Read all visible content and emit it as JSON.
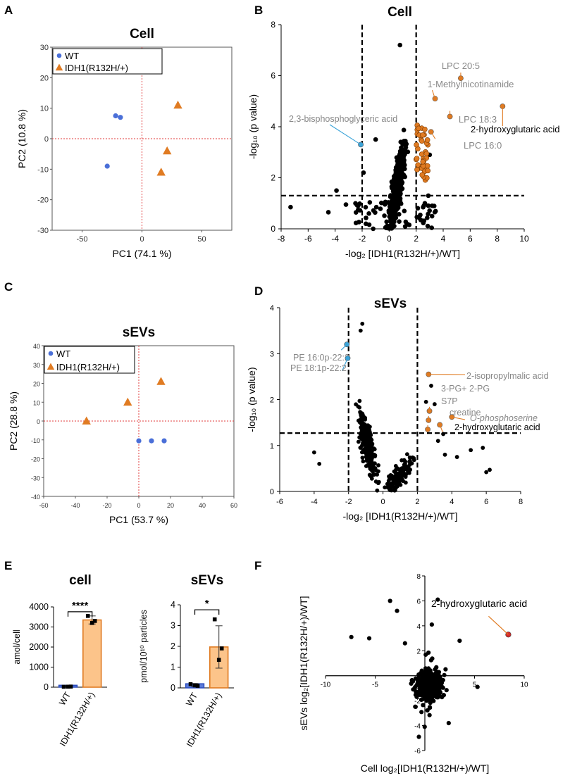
{
  "panels": {
    "A": {
      "letter": "A"
    },
    "B": {
      "letter": "B"
    },
    "C": {
      "letter": "C"
    },
    "D": {
      "letter": "D"
    },
    "E": {
      "letter": "E"
    },
    "F": {
      "letter": "F"
    }
  },
  "colors": {
    "wt": "#4a6fd8",
    "idh": "#e07b22",
    "orangeLabel": "#e07b22",
    "blueLabel": "#3aa3d8",
    "gray": "#888888",
    "red": "#d62a2a",
    "barFill": "#fcc48a"
  },
  "chart_data": [
    {
      "id": "A",
      "type": "scatter",
      "title": "Cell",
      "xlabel": "PC1 (74.1 %)",
      "ylabel": "PC2 (10.8 %)",
      "xlim": [
        -75,
        75
      ],
      "ylim": [
        -30,
        30
      ],
      "xticks": [
        -50,
        0,
        50
      ],
      "yticks": [
        -30,
        -20,
        -10,
        0,
        10,
        20,
        30
      ],
      "xtick_labels": [
        "-50",
        "0",
        "50"
      ],
      "ytick_labels": [
        "-30",
        "-20",
        "-10",
        "0",
        "10",
        "20",
        "30"
      ],
      "legend": [
        "WT",
        "IDH1(R132H/+)"
      ],
      "series": [
        {
          "name": "WT",
          "marker": "circle",
          "points": [
            [
              -22,
              7.5
            ],
            [
              -18,
              7
            ],
            [
              -29,
              -9
            ]
          ]
        },
        {
          "name": "IDH1(R132H/+)",
          "marker": "triangle",
          "points": [
            [
              30,
              11
            ],
            [
              21,
              -4
            ],
            [
              16,
              -11
            ]
          ]
        }
      ]
    },
    {
      "id": "B",
      "type": "scatter",
      "title": "Cell",
      "xlabel": "-log₂ [IDH1(R132H/+)/WT]",
      "ylabel": "-log₁₀ (p value)",
      "xlim": [
        -8,
        10
      ],
      "ylim": [
        0,
        8
      ],
      "xticks": [
        -8,
        -6,
        -4,
        -2,
        0,
        2,
        4,
        6,
        8,
        10
      ],
      "yticks": [
        0,
        2,
        4,
        6,
        8
      ],
      "xtick_labels": [
        "-8",
        "-6",
        "-4",
        "-2",
        "0",
        "2",
        "4",
        "6",
        "8",
        "10"
      ],
      "ytick_labels": [
        "0",
        "2",
        "4",
        "6",
        "8"
      ],
      "vlines": [
        -2,
        2
      ],
      "hline": 1.3,
      "highlighted": [
        {
          "label": "LPC 20:5",
          "x": 5.3,
          "y": 5.9,
          "color": "orange"
        },
        {
          "label": "1-Methylnicotinamide",
          "x": 3.4,
          "y": 5.1,
          "color": "orange"
        },
        {
          "label": "LPC 18:3",
          "x": 4.5,
          "y": 4.4,
          "color": "orange"
        },
        {
          "label": "LPC 16:0",
          "x": 3.1,
          "y": 3.8,
          "color": "orange"
        },
        {
          "label": "2-hydroxyglutaric acid",
          "x": 8.4,
          "y": 4.8,
          "color": "orange"
        },
        {
          "label": "2,3-bisphosphoglyceric acid",
          "x": -2.1,
          "y": 3.3,
          "color": "blue"
        }
      ]
    },
    {
      "id": "C",
      "type": "scatter",
      "title": "sEVs",
      "xlabel": "PC1 (53.7 %)",
      "ylabel": "PC2 (28.8 %)",
      "xlim": [
        -60,
        60
      ],
      "ylim": [
        -40,
        40
      ],
      "xticks": [
        -60,
        -40,
        -20,
        0,
        20,
        40,
        60
      ],
      "yticks": [
        -40,
        -30,
        -20,
        -10,
        0,
        10,
        20,
        30,
        40
      ],
      "xtick_labels": [
        "-60",
        "-40",
        "-20",
        "0",
        "20",
        "40",
        "60"
      ],
      "ytick_labels": [
        "-40",
        "-30",
        "-20",
        "-10",
        "0",
        "10",
        "20",
        "30",
        "40"
      ],
      "legend": [
        "WT",
        "IDH1(R132H/+)"
      ],
      "series": [
        {
          "name": "WT",
          "marker": "circle",
          "points": [
            [
              0,
              -10.5
            ],
            [
              8,
              -10.5
            ],
            [
              16,
              -10.5
            ]
          ]
        },
        {
          "name": "IDH1(R132H/+)",
          "marker": "triangle",
          "points": [
            [
              14,
              21
            ],
            [
              -7,
              10
            ],
            [
              -33,
              0
            ]
          ]
        }
      ]
    },
    {
      "id": "D",
      "type": "scatter",
      "title": "sEVs",
      "xlabel": "-log₂ [IDH1(R132H/+)/WT]",
      "ylabel": "-log₁₀ (p value)",
      "xlim": [
        -6,
        8
      ],
      "ylim": [
        0,
        4
      ],
      "xticks": [
        -6,
        -4,
        -2,
        0,
        2,
        4,
        6,
        8
      ],
      "yticks": [
        0,
        1,
        2,
        3,
        4
      ],
      "xtick_labels": [
        "-6",
        "-4",
        "-2",
        "0",
        "2",
        "4",
        "6",
        "8"
      ],
      "ytick_labels": [
        "0",
        "1",
        "2",
        "3",
        "4"
      ],
      "vlines": [
        -2,
        2
      ],
      "hline": 1.27,
      "highlighted": [
        {
          "label": "PE 16:0p-22:2",
          "x": -2.1,
          "y": 3.2,
          "color": "blue"
        },
        {
          "label": "PE 18:1p-22:2",
          "x": -2.05,
          "y": 2.9,
          "color": "blue"
        },
        {
          "label": "2-isopropylmalic acid",
          "x": 2.65,
          "y": 2.55,
          "color": "orange"
        },
        {
          "label": "3-PG+ 2-PG",
          "x": 2.7,
          "y": 1.75,
          "color": "orange"
        },
        {
          "label": "S7P",
          "x": 2.65,
          "y": 1.55,
          "color": "orange"
        },
        {
          "label": "creatine",
          "x": 2.6,
          "y": 1.35,
          "color": "orange"
        },
        {
          "label": "O-phosphoserine",
          "x": 4.0,
          "y": 1.62,
          "color": "orange"
        },
        {
          "label": "2-hydroxyglutaric acid",
          "x": 3.3,
          "y": 1.45,
          "color": "orange"
        }
      ]
    },
    {
      "id": "E1",
      "type": "bar",
      "title": "cell",
      "ylabel": "amol/cell",
      "ylim": [
        0,
        4000
      ],
      "yticks": [
        0,
        1000,
        2000,
        3000,
        4000
      ],
      "ytick_labels": [
        "0",
        "1000",
        "2000",
        "3000",
        "4000"
      ],
      "categories": [
        "WT",
        "IDH1(R132H/+)"
      ],
      "values": [
        25,
        3350
      ],
      "errors": [
        15,
        200
      ],
      "points": [
        [
          20,
          30,
          25
        ],
        [
          3550,
          3300,
          3200
        ]
      ],
      "significance": "****"
    },
    {
      "id": "E2",
      "type": "bar",
      "title": "sEVs",
      "ylabel": "pmol/10¹⁰ particles",
      "ylim": [
        0,
        4
      ],
      "yticks": [
        0,
        1,
        2,
        3,
        4
      ],
      "ytick_labels": [
        "0",
        "1",
        "2",
        "3",
        "4"
      ],
      "categories": [
        "WT",
        "IDH1(R132H/+)"
      ],
      "values": [
        0.13,
        1.97
      ],
      "errors": [
        0.08,
        1.02
      ],
      "points": [
        [
          0.18,
          0.1,
          0.12
        ],
        [
          3.3,
          1.9,
          1.35
        ]
      ],
      "significance": "*"
    },
    {
      "id": "F",
      "type": "scatter",
      "xlabel": "Cell log₂[IDH1(R132H/+)/WT]",
      "ylabel": "sEVs log₂[IDH1(R132H/+)/WT]",
      "xlim": [
        -10,
        10
      ],
      "ylim": [
        -6,
        8
      ],
      "xticks": [
        -10,
        -5,
        5,
        10
      ],
      "yticks": [
        -6,
        -4,
        -2,
        2,
        4,
        6,
        8
      ],
      "xtick_labels": [
        "-10",
        "-5",
        "5",
        "10"
      ],
      "ytick_labels": [
        "-6",
        "-4",
        "-2",
        "2",
        "4",
        "6",
        "8"
      ],
      "highlighted": [
        {
          "label": "2-hydroxyglutaric acid",
          "x": 8.4,
          "y": 3.3,
          "color": "red"
        }
      ]
    }
  ]
}
